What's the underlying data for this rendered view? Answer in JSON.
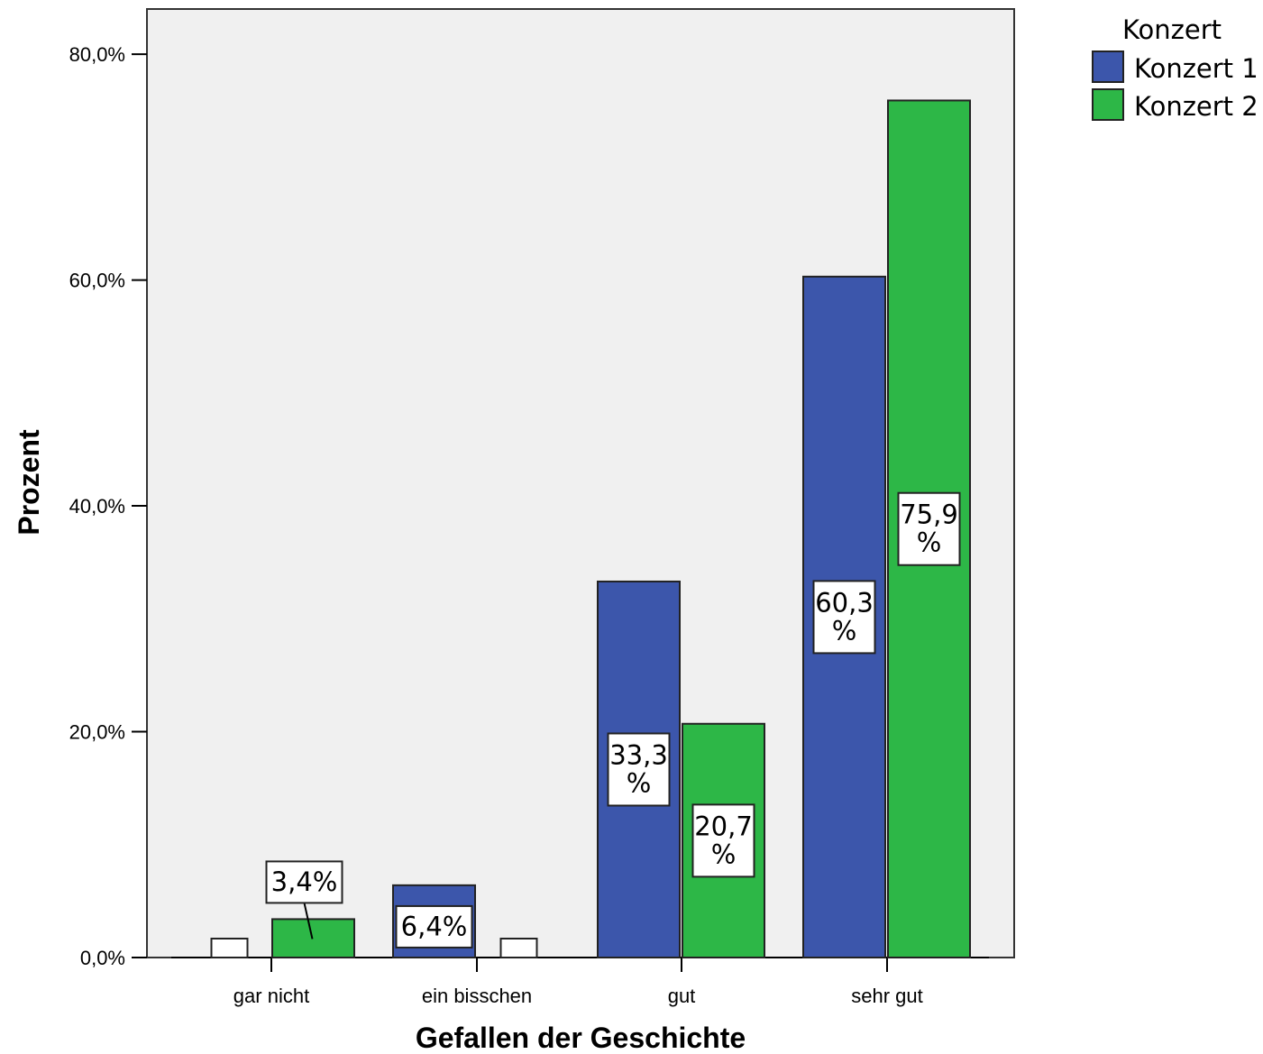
{
  "chart_data": {
    "type": "bar",
    "categories": [
      "gar nicht",
      "ein bisschen",
      "gut",
      "sehr gut"
    ],
    "series": [
      {
        "name": "Konzert 1",
        "color": "#3c56ab",
        "values": [
          0,
          6.4,
          33.3,
          60.3
        ],
        "labels": [
          null,
          [
            "6,4%"
          ],
          [
            "33,3",
            "%"
          ],
          [
            "60,3",
            "%"
          ]
        ]
      },
      {
        "name": "Konzert 2",
        "color": "#2db747",
        "values": [
          3.4,
          0,
          20.7,
          75.9
        ],
        "labels": [
          [
            "3,4%"
          ],
          null,
          [
            "20,7",
            "%"
          ],
          [
            "75,9",
            "%"
          ]
        ]
      }
    ],
    "xlabel": "Gefallen der Geschichte",
    "ylabel": "Prozent",
    "ylim": [
      0,
      84
    ],
    "yticks": [
      0,
      20,
      40,
      60,
      80
    ],
    "ytick_labels": [
      "0,0%",
      "20,0%",
      "40,0%",
      "60,0%",
      "80,0%"
    ],
    "legend": {
      "title": "Konzert",
      "position": "top-right"
    },
    "plot_background": "#f0f0f0",
    "grid": false
  }
}
